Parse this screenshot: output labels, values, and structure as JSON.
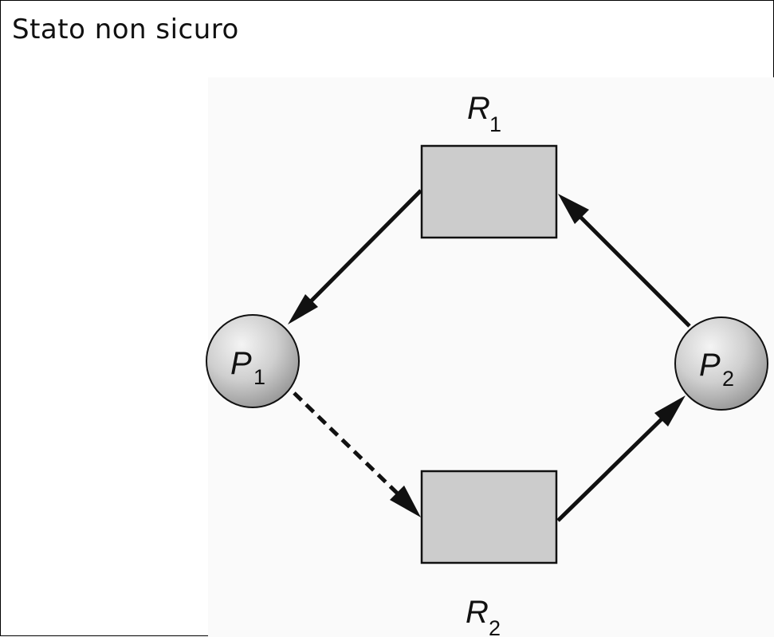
{
  "title": "Stato non sicuro",
  "nodes": {
    "r1": {
      "letter": "R",
      "sub": "1"
    },
    "r2": {
      "letter": "R",
      "sub": "2"
    },
    "p1": {
      "letter": "P",
      "sub": "1"
    },
    "p2": {
      "letter": "P",
      "sub": "2"
    }
  },
  "colors": {
    "resource_fill": "#cccccc",
    "process_fill": "#c8c8c8",
    "stroke": "#111111"
  }
}
